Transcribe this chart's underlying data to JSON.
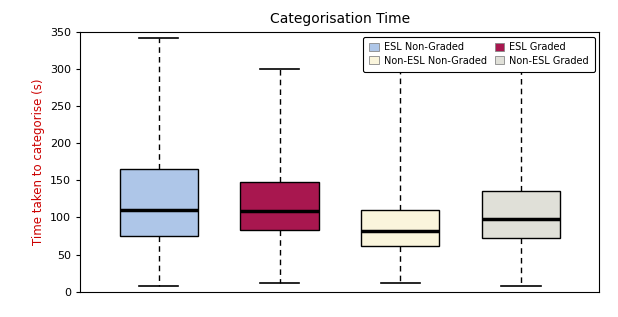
{
  "title": "Categorisation Time",
  "ylabel": "Time taken to categorise (s)",
  "ylabel_color": "#cc0000",
  "ylim": [
    0,
    350
  ],
  "yticks": [
    0,
    50,
    100,
    150,
    200,
    250,
    300,
    350
  ],
  "boxes": [
    {
      "label": "ESL Non-Graded",
      "color": "#aec6e8",
      "edgecolor": "#000000",
      "whislo": 8,
      "q1": 75,
      "med": 110,
      "q3": 165,
      "whishi": 342,
      "fliers": []
    },
    {
      "label": "ESL Graded",
      "color": "#a8174f",
      "edgecolor": "#000000",
      "whislo": 12,
      "q1": 83,
      "med": 108,
      "q3": 148,
      "whishi": 300,
      "fliers": []
    },
    {
      "label": "Non-ESL Non-Graded",
      "color": "#faf5dc",
      "edgecolor": "#000000",
      "whislo": 12,
      "q1": 62,
      "med": 82,
      "q3": 110,
      "whishi": 298,
      "fliers": []
    },
    {
      "label": "Non-ESL Graded",
      "color": "#e0e0d8",
      "edgecolor": "#000000",
      "whislo": 8,
      "q1": 72,
      "med": 98,
      "q3": 135,
      "whishi": 300,
      "fliers": []
    }
  ],
  "legend_labels": [
    "ESL Non-Graded",
    "ESL Graded",
    "Non-ESL Non-Graded",
    "Non-ESL Graded"
  ],
  "legend_colors": [
    "#aec6e8",
    "#a8174f",
    "#faf5dc",
    "#e0e0d8"
  ],
  "background_color": "#ffffff"
}
